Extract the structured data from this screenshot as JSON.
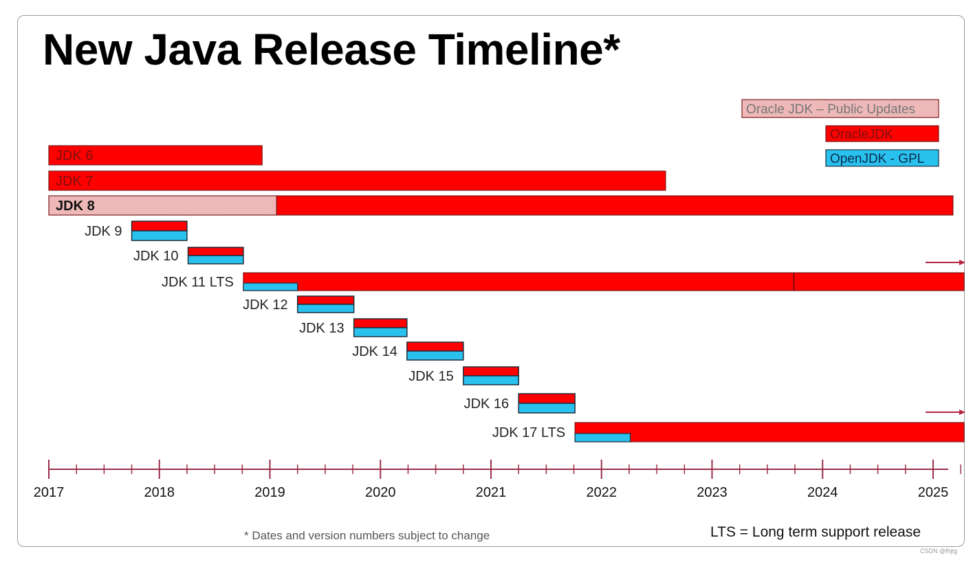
{
  "title": "New Java Release Timeline*",
  "footnote": "* Dates and version numbers subject to change",
  "lts_note": "LTS = Long term support release",
  "watermark": "CSDN @fhjtg",
  "legend": [
    {
      "label": "Oracle JDK – Public Updates",
      "kind": "public-updates"
    },
    {
      "label": "OracleJDK",
      "kind": "oracle"
    },
    {
      "label": "OpenJDK - GPL",
      "kind": "openjdk"
    }
  ],
  "colors": {
    "oracle": "#ff0000",
    "openjdk": "#29c2ee",
    "public_updates": "#f3bcbc",
    "axis": "#9b2d4a",
    "border": "#1f2d3d"
  },
  "chart_data": {
    "type": "timeline",
    "x_axis": {
      "start": 2017,
      "end": 2025,
      "years": [
        "2017",
        "2018",
        "2019",
        "2020",
        "2021",
        "2022",
        "2023",
        "2024",
        "2025"
      ],
      "minor_ticks_per_year": 4
    },
    "releases": [
      {
        "label": "JDK 6",
        "label_inside": true,
        "segments": [
          {
            "type": "oracle",
            "start": 2017.0,
            "end": 2018.93
          }
        ]
      },
      {
        "label": "JDK 7",
        "label_inside": true,
        "segments": [
          {
            "type": "oracle",
            "start": 2017.0,
            "end": 2022.58
          }
        ]
      },
      {
        "label": "JDK 8",
        "label_inside": true,
        "segments": [
          {
            "type": "public-updates",
            "start": 2017.0,
            "end": 2019.06
          },
          {
            "type": "oracle",
            "start": 2019.06,
            "end": 2025.18
          }
        ]
      },
      {
        "label": "JDK 9",
        "stacked": true,
        "start": 2017.75,
        "end": 2018.25
      },
      {
        "label": "JDK 10",
        "stacked": true,
        "start": 2018.26,
        "end": 2018.76
      },
      {
        "label": "JDK 11 LTS",
        "segments": [
          {
            "type": "oracle",
            "start": 2018.76,
            "end": 2025.28
          },
          {
            "type": "openjdk",
            "start": 2018.76,
            "end": 2019.25
          }
        ],
        "divider": 2023.74,
        "arrow": true
      },
      {
        "label": "JDK 12",
        "stacked": true,
        "start": 2019.25,
        "end": 2019.76
      },
      {
        "label": "JDK 13",
        "stacked": true,
        "start": 2019.76,
        "end": 2020.24
      },
      {
        "label": "JDK 14",
        "stacked": true,
        "start": 2020.24,
        "end": 2020.75
      },
      {
        "label": "JDK 15",
        "stacked": true,
        "start": 2020.75,
        "end": 2021.25
      },
      {
        "label": "JDK 16",
        "stacked": true,
        "start": 2021.25,
        "end": 2021.76
      },
      {
        "label": "JDK 17 LTS",
        "segments": [
          {
            "type": "oracle",
            "start": 2021.76,
            "end": 2025.28
          },
          {
            "type": "openjdk",
            "start": 2021.76,
            "end": 2022.26
          }
        ],
        "arrow": true
      }
    ]
  }
}
